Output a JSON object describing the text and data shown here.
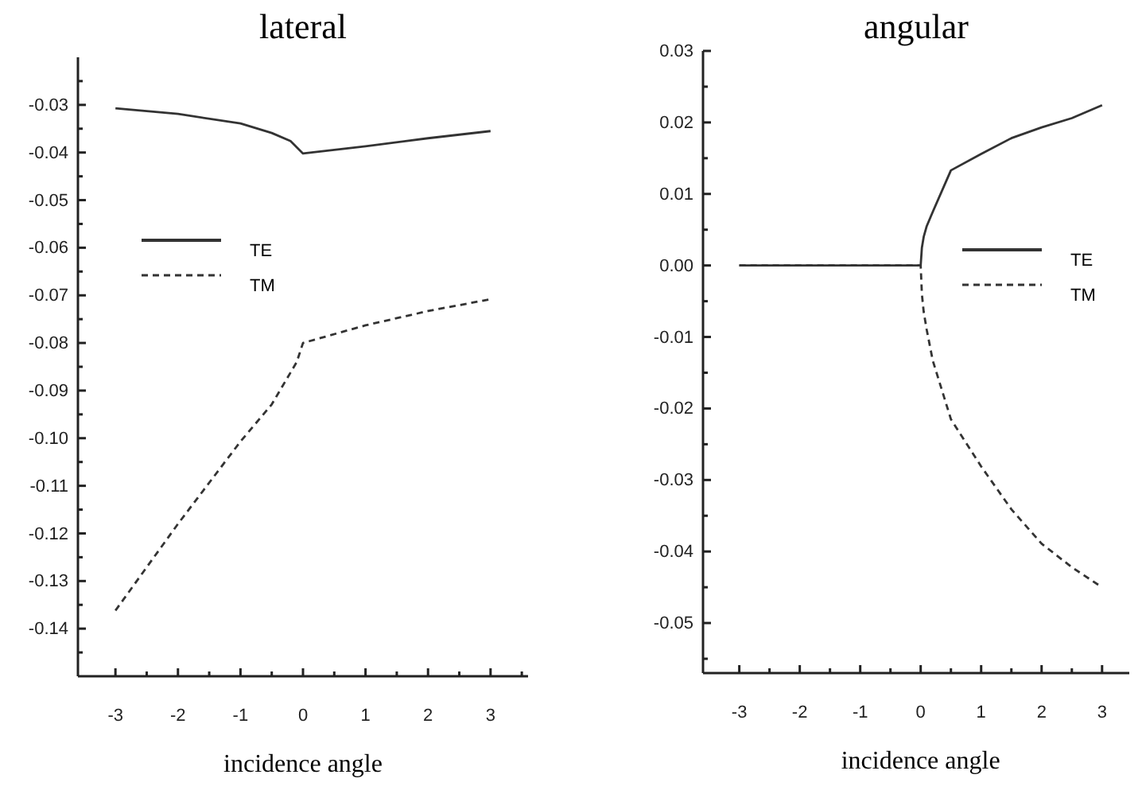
{
  "chart_data": [
    {
      "type": "line",
      "title": "lateral",
      "xlabel": "incidence angle",
      "xlim": [
        -3.6,
        3.6
      ],
      "ylim": [
        -0.15,
        -0.02
      ],
      "xticks": [
        -3,
        {
          "value": -2.5,
          "label": null
        },
        -2,
        {
          "value": -1.5,
          "label": null
        },
        -1,
        {
          "value": -0.5,
          "label": null
        },
        0,
        {
          "value": 0.5,
          "label": null
        },
        1,
        {
          "value": 1.5,
          "label": null
        },
        2,
        {
          "value": 2.5,
          "label": null
        },
        3,
        {
          "value": 3.5,
          "label": null
        }
      ],
      "yticks": [
        {
          "value": -0.025,
          "label": null
        },
        {
          "value": -0.03,
          "label": "-0.03"
        },
        {
          "value": -0.035,
          "label": null
        },
        {
          "value": -0.04,
          "label": "-0.04"
        },
        {
          "value": -0.045,
          "label": null
        },
        {
          "value": -0.05,
          "label": "-0.05"
        },
        {
          "value": -0.055,
          "label": null
        },
        {
          "value": -0.06,
          "label": "-0.06"
        },
        {
          "value": -0.065,
          "label": null
        },
        {
          "value": -0.07,
          "label": "-0.07"
        },
        {
          "value": -0.075,
          "label": null
        },
        {
          "value": -0.08,
          "label": "-0.08"
        },
        {
          "value": -0.085,
          "label": null
        },
        {
          "value": -0.09,
          "label": "-0.09"
        },
        {
          "value": -0.095,
          "label": null
        },
        {
          "value": -0.1,
          "label": "-0.10"
        },
        {
          "value": -0.105,
          "label": null
        },
        {
          "value": -0.11,
          "label": "-0.11"
        },
        {
          "value": -0.115,
          "label": null
        },
        {
          "value": -0.12,
          "label": "-0.12"
        },
        {
          "value": -0.125,
          "label": null
        },
        {
          "value": -0.13,
          "label": "-0.13"
        },
        {
          "value": -0.135,
          "label": null
        },
        {
          "value": -0.14,
          "label": "-0.14"
        },
        {
          "value": -0.145,
          "label": null
        }
      ],
      "grid": false,
      "legend": "top left",
      "series": [
        {
          "name": "TE",
          "color": "#333333",
          "line_style": "solid",
          "x": [
            -3,
            -2,
            -1,
            -0.5,
            -0.2,
            0,
            1,
            2,
            3
          ],
          "values": [
            -0.0307,
            -0.0319,
            -0.0339,
            -0.0359,
            -0.0376,
            -0.0402,
            -0.0387,
            -0.037,
            -0.0355
          ]
        },
        {
          "name": "TM",
          "color": "#333333",
          "line_style": "dashed",
          "x": [
            -3,
            -2,
            -1,
            -0.5,
            -0.1,
            0,
            1,
            2,
            3
          ],
          "values": [
            -0.1362,
            -0.118,
            -0.1007,
            -0.0929,
            -0.084,
            -0.08,
            -0.0763,
            -0.0733,
            -0.0708
          ]
        }
      ]
    },
    {
      "type": "line",
      "title": "angular",
      "xlabel": "incidence angle",
      "xlim": [
        -3.6,
        3.45
      ],
      "ylim": [
        -0.057,
        0.03
      ],
      "xticks": [
        -3,
        {
          "value": -2.5,
          "label": null
        },
        -2,
        {
          "value": -1.5,
          "label": null
        },
        -1,
        {
          "value": -0.5,
          "label": null
        },
        0,
        {
          "value": 0.5,
          "label": null
        },
        1,
        {
          "value": 1.5,
          "label": null
        },
        2,
        {
          "value": 2.5,
          "label": null
        },
        3
      ],
      "yticks": [
        {
          "value": 0.03,
          "label": "0.03"
        },
        {
          "value": 0.025,
          "label": null
        },
        {
          "value": 0.02,
          "label": "0.02"
        },
        {
          "value": 0.015,
          "label": null
        },
        {
          "value": 0.01,
          "label": "0.01"
        },
        {
          "value": 0.005,
          "label": null
        },
        {
          "value": 0,
          "label": "0.00"
        },
        {
          "value": -0.005,
          "label": null
        },
        {
          "value": -0.01,
          "label": "-0.01"
        },
        {
          "value": -0.015,
          "label": null
        },
        {
          "value": -0.02,
          "label": "-0.02"
        },
        {
          "value": -0.025,
          "label": null
        },
        {
          "value": -0.03,
          "label": "-0.03"
        },
        {
          "value": -0.035,
          "label": null
        },
        {
          "value": -0.04,
          "label": "-0.04"
        },
        {
          "value": -0.045,
          "label": null
        },
        {
          "value": -0.05,
          "label": "-0.05"
        },
        {
          "value": -0.055,
          "label": null
        }
      ],
      "grid": false,
      "legend": "right",
      "series": [
        {
          "name": "TE",
          "color": "#333333",
          "line_style": "solid",
          "x": [
            -3,
            -1,
            0,
            0.02,
            0.05,
            0.1,
            0.2,
            0.5,
            1,
            1.5,
            2,
            2.5,
            3
          ],
          "values": [
            0,
            0,
            0,
            0.0025,
            0.004,
            0.0055,
            0.0075,
            0.0133,
            0.0156,
            0.0178,
            0.0193,
            0.0206,
            0.0224
          ]
        },
        {
          "name": "TM",
          "color": "#333333",
          "line_style": "dashed",
          "x": [
            -3,
            -1,
            0,
            0.02,
            0.05,
            0.1,
            0.2,
            0.5,
            1,
            1.5,
            2,
            2.5,
            3
          ],
          "values": [
            0,
            0,
            0,
            -0.004,
            -0.0065,
            -0.009,
            -0.0133,
            -0.0215,
            -0.0281,
            -0.0341,
            -0.0389,
            -0.0422,
            -0.045
          ]
        }
      ]
    }
  ]
}
